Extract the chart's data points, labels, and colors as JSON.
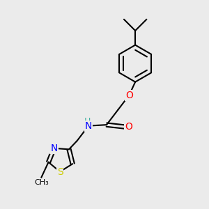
{
  "background_color": "#ebebeb",
  "bond_color": "#000000",
  "bond_width": 1.5,
  "atom_colors": {
    "O": "#ff0000",
    "N": "#0000ff",
    "S": "#cccc00",
    "C": "#000000",
    "H": "#40b0a0"
  },
  "font_size": 9,
  "fig_width": 3.0,
  "fig_height": 3.0,
  "dpi": 100
}
